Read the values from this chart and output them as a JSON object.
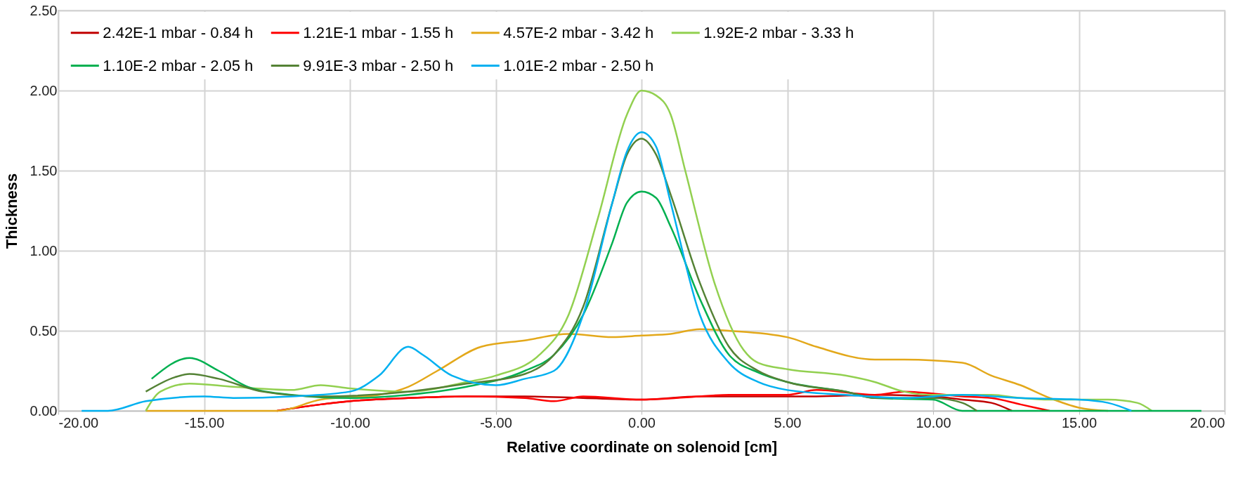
{
  "chart_data": {
    "type": "line",
    "xlabel": "Relative coordinate on solenoid [cm]",
    "ylabel": "Thickness",
    "xlim": [
      -20,
      20
    ],
    "ylim": [
      0,
      2.5
    ],
    "xticks": [
      {
        "value": -20,
        "label": "-20.00"
      },
      {
        "value": -15,
        "label": "-15.00"
      },
      {
        "value": -10,
        "label": "-10.00"
      },
      {
        "value": -5,
        "label": "-5.00"
      },
      {
        "value": 0,
        "label": "0.00"
      },
      {
        "value": 5,
        "label": "5.00"
      },
      {
        "value": 10,
        "label": "10.00"
      },
      {
        "value": 15,
        "label": "15.00"
      },
      {
        "value": 20,
        "label": "20.00"
      }
    ],
    "yticks": [
      {
        "value": 0,
        "label": "0.00"
      },
      {
        "value": 0.5,
        "label": "0.50"
      },
      {
        "value": 1,
        "label": "1.00"
      },
      {
        "value": 1.5,
        "label": "1.50"
      },
      {
        "value": 2,
        "label": "2.00"
      },
      {
        "value": 2.5,
        "label": "2.50"
      }
    ],
    "grid": true,
    "legend": "top",
    "line_style": "solid",
    "marker": "none",
    "series": [
      {
        "name": "2.42E-1 mbar - 0.84 h",
        "color": "#c00000",
        "x": [
          -12.5,
          -11,
          -10,
          -8,
          -6,
          -4,
          -2,
          0,
          2,
          4,
          6,
          8,
          10,
          11,
          12,
          12.7
        ],
        "values": [
          0,
          0.04,
          0.06,
          0.08,
          0.09,
          0.09,
          0.08,
          0.07,
          0.09,
          0.09,
          0.09,
          0.1,
          0.09,
          0.07,
          0.05,
          0
        ]
      },
      {
        "name": "1.21E-1 mbar - 1.55 h",
        "color": "#ff0000",
        "x": [
          -12.5,
          -11,
          -10,
          -8,
          -6,
          -4,
          -3,
          -2,
          0,
          2,
          3,
          5,
          6,
          8,
          9,
          11,
          12,
          13,
          14
        ],
        "values": [
          0,
          0.04,
          0.06,
          0.08,
          0.09,
          0.08,
          0.06,
          0.09,
          0.07,
          0.09,
          0.1,
          0.1,
          0.13,
          0.1,
          0.12,
          0.09,
          0.08,
          0.04,
          0
        ]
      },
      {
        "name": "4.57E-2 mbar - 3.42 h",
        "color": "#e3a81a",
        "x": [
          -17,
          -12.5,
          -11,
          -9,
          -8,
          -7,
          -5.5,
          -4,
          -2.5,
          -1,
          0,
          1,
          2,
          3,
          5,
          6,
          8,
          9,
          11,
          12,
          13,
          14,
          15,
          16
        ],
        "values": [
          0,
          0,
          0.07,
          0.1,
          0.15,
          0.25,
          0.4,
          0.44,
          0.48,
          0.46,
          0.47,
          0.48,
          0.51,
          0.5,
          0.46,
          0.4,
          0.32,
          0.32,
          0.3,
          0.22,
          0.16,
          0.08,
          0.02,
          0
        ]
      },
      {
        "name": "1.92E-2 mbar - 3.33 h",
        "color": "#92d050",
        "x": [
          -17,
          -16.5,
          -15.5,
          -14,
          -12,
          -11,
          -10,
          -8,
          -6,
          -5,
          -3.5,
          -2.5,
          -1.5,
          -0.5,
          0,
          0.5,
          1,
          1.5,
          2.5,
          3.5,
          4,
          5,
          7,
          8,
          9,
          10,
          11,
          12,
          13,
          14,
          15,
          16,
          17,
          17.5
        ],
        "values": [
          0,
          0.12,
          0.17,
          0.15,
          0.13,
          0.16,
          0.14,
          0.12,
          0.18,
          0.22,
          0.35,
          0.6,
          1.2,
          1.85,
          2.0,
          1.97,
          1.85,
          1.5,
          0.8,
          0.38,
          0.3,
          0.26,
          0.22,
          0.18,
          0.12,
          0.1,
          0.1,
          0.1,
          0.08,
          0.07,
          0.07,
          0.07,
          0.05,
          0
        ]
      },
      {
        "name": "1.10E-2 mbar - 2.05 h",
        "color": "#00b050",
        "x": [
          -16.8,
          -15.5,
          -14.5,
          -13.5,
          -12,
          -10,
          -8,
          -6,
          -4,
          -3,
          -2,
          -1,
          -0.5,
          0,
          0.5,
          1,
          2,
          3,
          4,
          5,
          7,
          8,
          10,
          11,
          19.2
        ],
        "values": [
          0.2,
          0.33,
          0.25,
          0.15,
          0.1,
          0.08,
          0.1,
          0.15,
          0.25,
          0.35,
          0.6,
          1.05,
          1.3,
          1.37,
          1.33,
          1.15,
          0.7,
          0.35,
          0.24,
          0.18,
          0.12,
          0.08,
          0.07,
          0,
          0
        ]
      },
      {
        "name": "9.91E-3 mbar - 2.50 h",
        "color": "#548235",
        "x": [
          -17,
          -16,
          -15.5,
          -14.5,
          -13,
          -11,
          -8,
          -6,
          -4,
          -3,
          -2,
          -1,
          -0.5,
          0,
          0.5,
          1,
          2,
          3,
          4,
          5,
          7,
          8,
          10,
          11,
          11.5
        ],
        "values": [
          0.12,
          0.21,
          0.23,
          0.2,
          0.12,
          0.09,
          0.12,
          0.17,
          0.23,
          0.35,
          0.65,
          1.3,
          1.6,
          1.7,
          1.6,
          1.35,
          0.8,
          0.4,
          0.25,
          0.18,
          0.12,
          0.08,
          0.08,
          0.05,
          0
        ]
      },
      {
        "name": "1.01E-2 mbar - 2.50 h",
        "color": "#00b0f0",
        "x": [
          -19.2,
          -18.3,
          -17,
          -15,
          -14,
          -12,
          -10,
          -9,
          -8,
          -7.5,
          -6.5,
          -5,
          -4,
          -3,
          -2,
          -1,
          -0.5,
          0,
          0.5,
          1,
          2,
          3,
          4,
          5,
          7,
          9,
          11,
          13,
          15,
          16,
          16.8
        ],
        "values": [
          0,
          0,
          0.06,
          0.09,
          0.08,
          0.09,
          0.12,
          0.22,
          0.4,
          0.35,
          0.22,
          0.16,
          0.2,
          0.25,
          0.6,
          1.3,
          1.62,
          1.74,
          1.65,
          1.3,
          0.6,
          0.3,
          0.18,
          0.13,
          0.1,
          0.08,
          0.1,
          0.08,
          0.07,
          0.05,
          0
        ]
      }
    ]
  }
}
